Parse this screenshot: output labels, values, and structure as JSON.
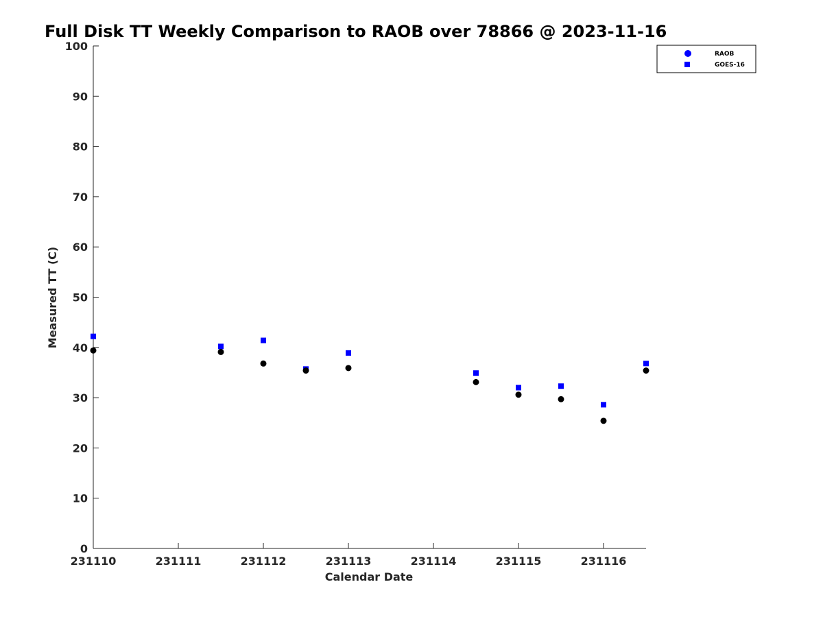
{
  "chart_data": {
    "type": "scatter",
    "title": "Full Disk TT Weekly Comparison to RAOB over 78866 @ 2023-11-16",
    "xlabel": "Calendar Date",
    "ylabel": "Measured TT (C)",
    "xlim": [
      "2023-11-10T00:00",
      "2023-11-16T12:00"
    ],
    "ylim": [
      0,
      100
    ],
    "xticks": [
      {
        "t": "2023-11-10T00:00",
        "label": "231110"
      },
      {
        "t": "2023-11-11T00:00",
        "label": "231111"
      },
      {
        "t": "2023-11-12T00:00",
        "label": "231112"
      },
      {
        "t": "2023-11-13T00:00",
        "label": "231113"
      },
      {
        "t": "2023-11-14T00:00",
        "label": "231114"
      },
      {
        "t": "2023-11-15T00:00",
        "label": "231115"
      },
      {
        "t": "2023-11-16T00:00",
        "label": "231116"
      }
    ],
    "yticks": [
      0,
      10,
      20,
      30,
      40,
      50,
      60,
      70,
      80,
      90,
      100
    ],
    "grid": false,
    "legend_position": "top-right",
    "series": [
      {
        "name": "RAOB",
        "marker": "circle",
        "legend_color": "#0000ff",
        "color": "#000000",
        "points": [
          {
            "x": "2023-11-10T00:00",
            "y": 39.4
          },
          {
            "x": "2023-11-11T12:00",
            "y": 39.1
          },
          {
            "x": "2023-11-12T00:00",
            "y": 36.8
          },
          {
            "x": "2023-11-12T12:00",
            "y": 35.4
          },
          {
            "x": "2023-11-13T00:00",
            "y": 35.9
          },
          {
            "x": "2023-11-14T12:00",
            "y": 33.1
          },
          {
            "x": "2023-11-15T00:00",
            "y": 30.6
          },
          {
            "x": "2023-11-15T12:00",
            "y": 29.7
          },
          {
            "x": "2023-11-16T00:00",
            "y": 25.4
          },
          {
            "x": "2023-11-16T12:00",
            "y": 35.4
          }
        ]
      },
      {
        "name": "GOES-16",
        "marker": "square",
        "color": "#0000ff",
        "points": [
          {
            "x": "2023-11-10T00:00",
            "y": 42.2
          },
          {
            "x": "2023-11-11T12:00",
            "y": 40.2
          },
          {
            "x": "2023-11-12T00:00",
            "y": 41.4
          },
          {
            "x": "2023-11-12T12:00",
            "y": 35.7
          },
          {
            "x": "2023-11-13T00:00",
            "y": 38.9
          },
          {
            "x": "2023-11-14T12:00",
            "y": 34.9
          },
          {
            "x": "2023-11-15T00:00",
            "y": 32.0
          },
          {
            "x": "2023-11-15T12:00",
            "y": 32.3
          },
          {
            "x": "2023-11-16T00:00",
            "y": 28.6
          },
          {
            "x": "2023-11-16T12:00",
            "y": 36.8
          }
        ]
      }
    ]
  }
}
